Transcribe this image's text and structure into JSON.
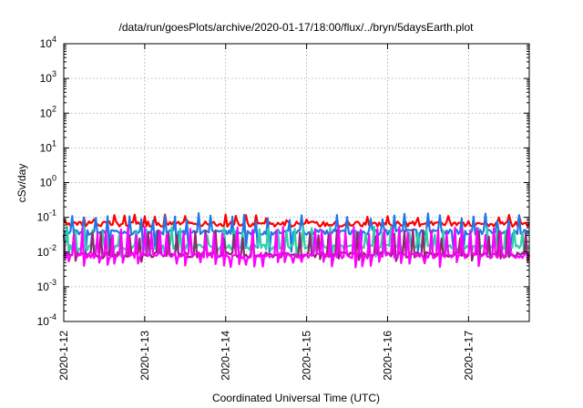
{
  "chart_data": {
    "type": "line",
    "title": "/data/run/goesPlots/archive/2020-01-17/18:00/flux/../bryn/5daysEarth.plot",
    "xlabel": "Coordinated Universal Time (UTC)",
    "ylabel": "cSv/day",
    "y_scale": "log",
    "ylim": [
      0.0001,
      10000
    ],
    "y_ticks": [
      {
        "base": "10",
        "exp": "-4"
      },
      {
        "base": "10",
        "exp": "-3"
      },
      {
        "base": "10",
        "exp": "-2"
      },
      {
        "base": "10",
        "exp": "-1"
      },
      {
        "base": "10",
        "exp": "0"
      },
      {
        "base": "10",
        "exp": "1"
      },
      {
        "base": "10",
        "exp": "2"
      },
      {
        "base": "10",
        "exp": "3"
      },
      {
        "base": "10",
        "exp": "4"
      }
    ],
    "xlim": [
      "2020-01-12",
      "2020-01-17T18:00"
    ],
    "x_tick_labels": [
      "2020-1-12",
      "2020-1-13",
      "2020-1-14",
      "2020-1-15",
      "2020-1-16",
      "2020-1-17"
    ],
    "grid": true,
    "legend": "none",
    "series": [
      {
        "color": "#ff0000",
        "base": 0.065,
        "spike": 0.11,
        "dip": 0.045,
        "period_hours": 3.0,
        "phase": 0
      },
      {
        "color": "#1f77e6",
        "base": 0.038,
        "spike": 0.12,
        "dip": 0.012,
        "period_hours": 3.4,
        "phase": 1
      },
      {
        "color": "#2ecfa8",
        "base": 0.014,
        "spike": 0.05,
        "dip": 0.009,
        "period_hours": 2.6,
        "phase": 2
      },
      {
        "color": "#8b2a6e",
        "base": 0.0085,
        "spike": 0.04,
        "dip": 0.0065,
        "period_hours": 2.8,
        "phase": 3
      },
      {
        "color": "#ff00ff",
        "base": 0.008,
        "spike": 0.05,
        "dip": 0.0045,
        "period_hours": 2.3,
        "phase": 4
      }
    ]
  }
}
